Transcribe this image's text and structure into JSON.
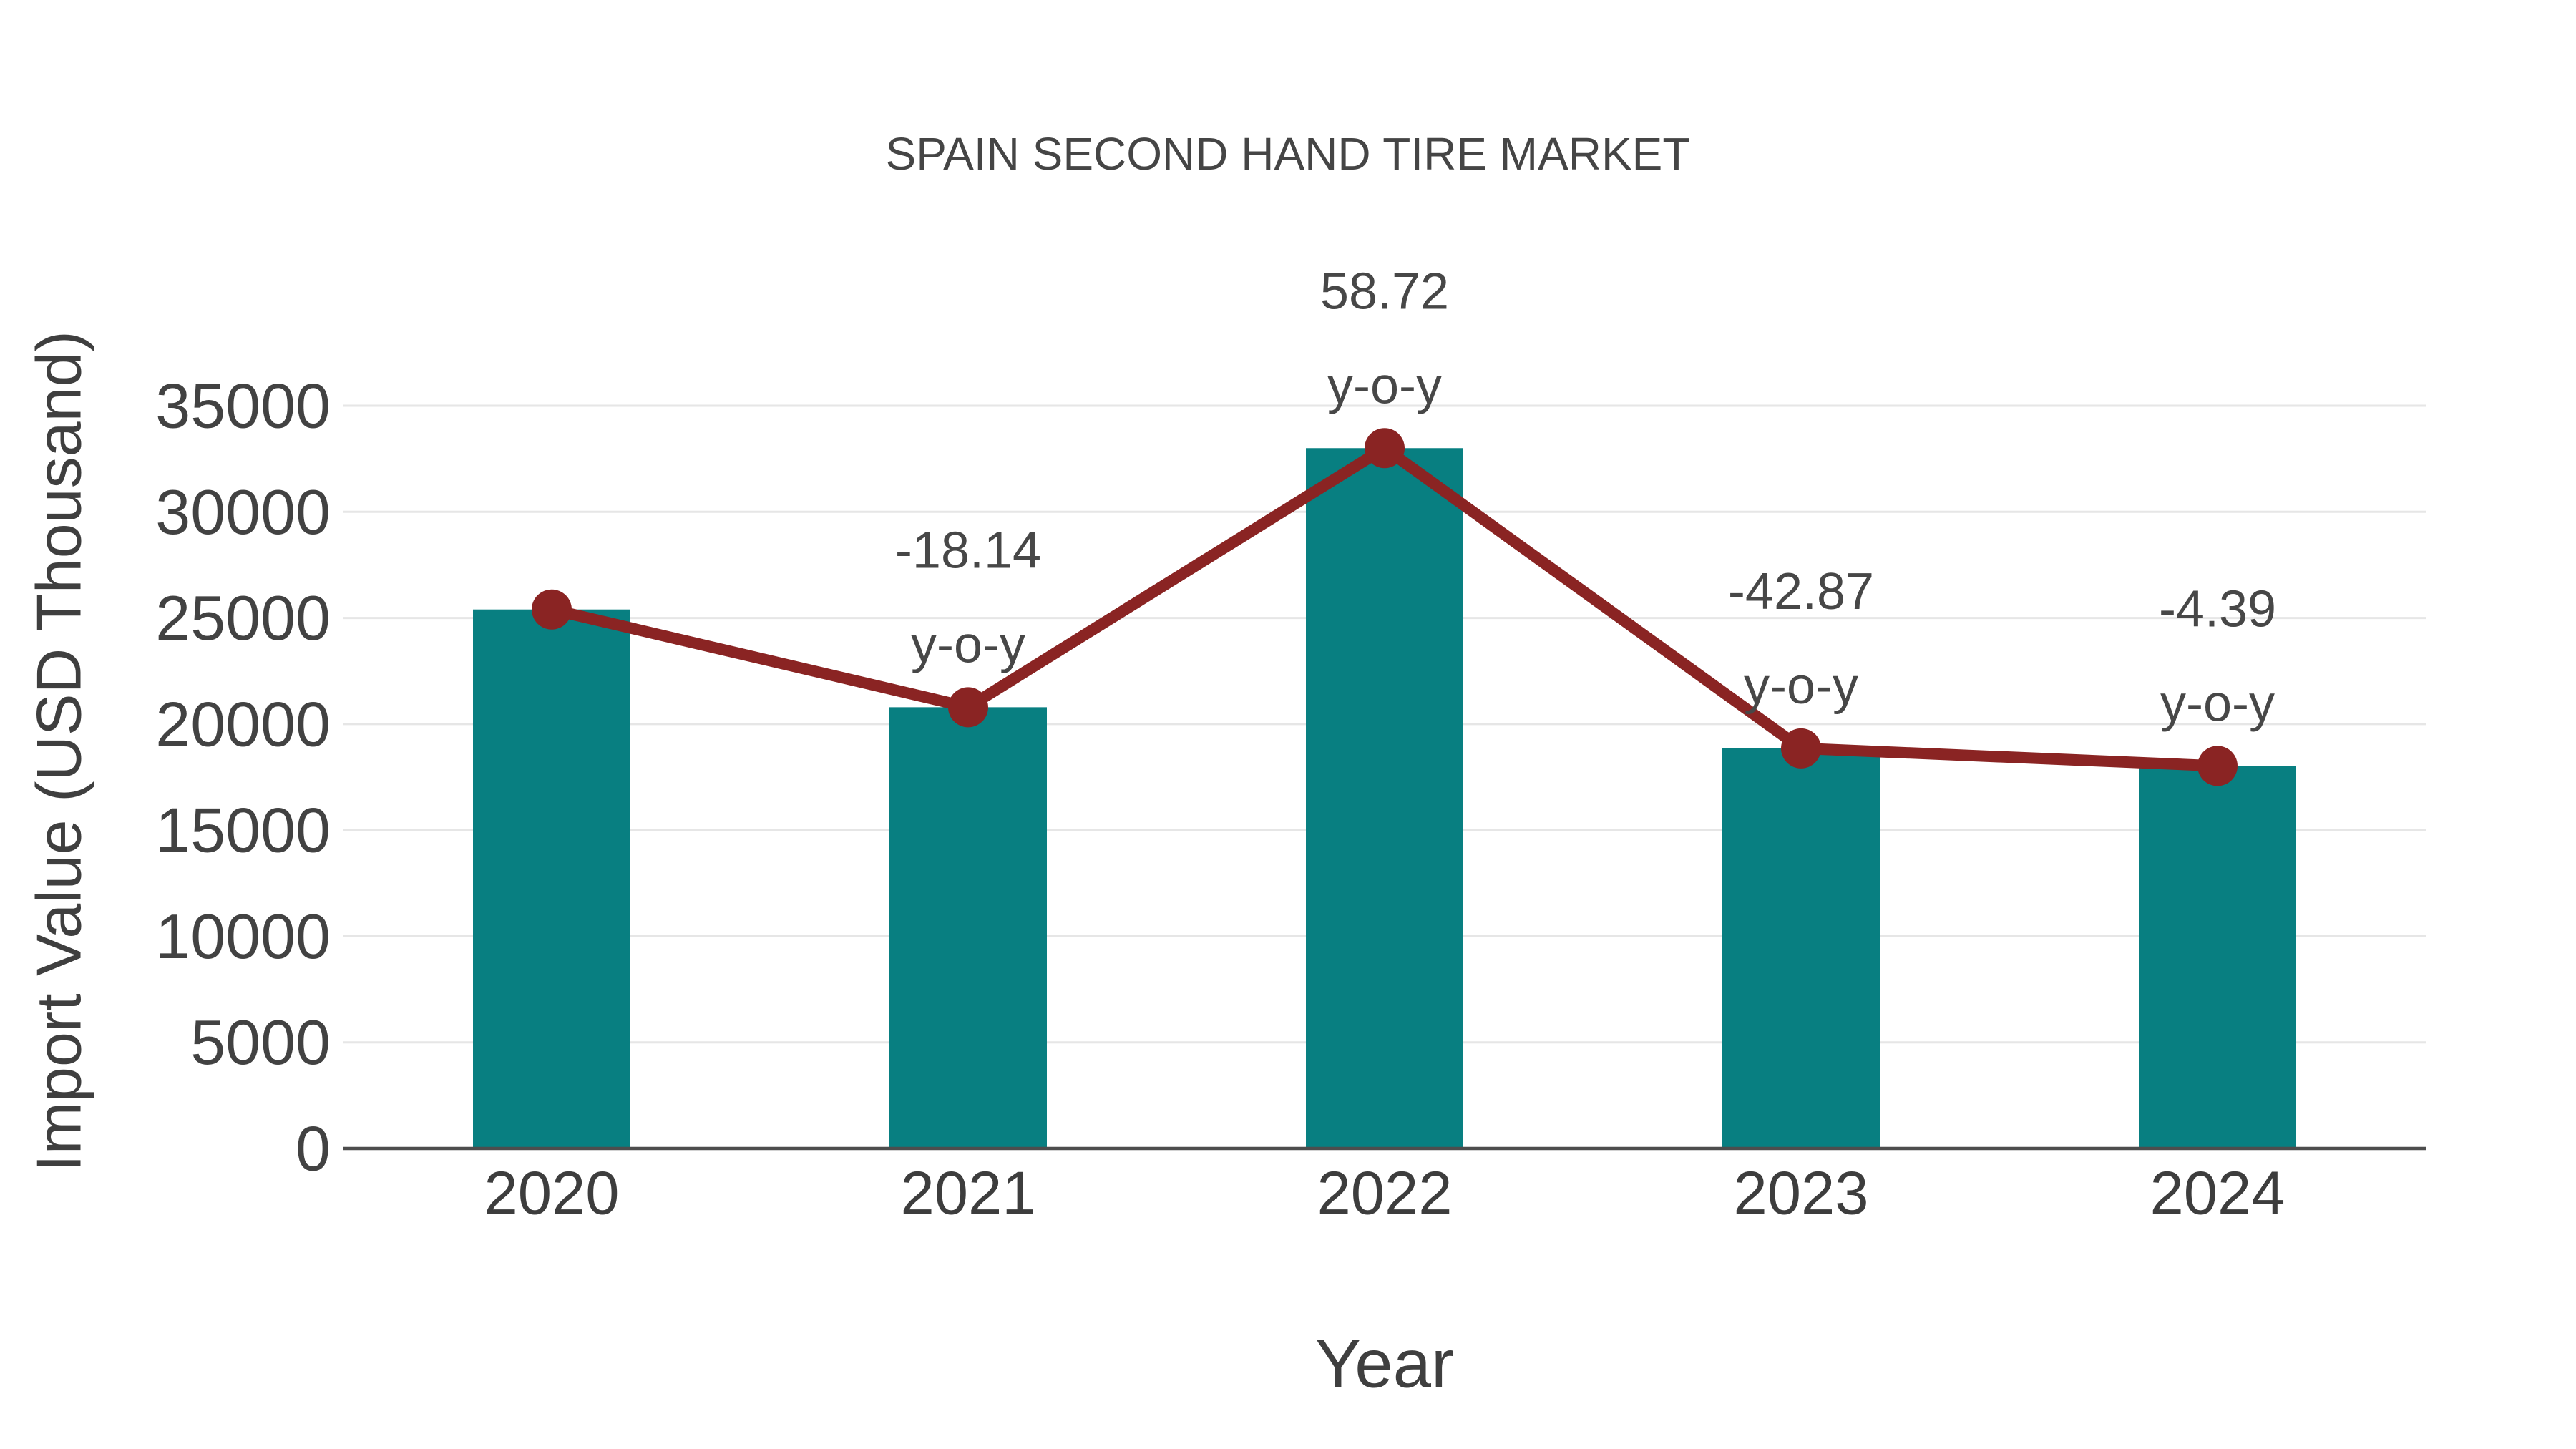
{
  "chart_data": {
    "type": "bar",
    "overlay": "line",
    "title": "SPAIN SECOND HAND TIRE MARKET",
    "xlabel": "Year",
    "ylabel": "Import Value (USD Thousand)",
    "categories": [
      "2020",
      "2021",
      "2022",
      "2023",
      "2024"
    ],
    "series": [
      {
        "name": "import-value-bars",
        "type": "bar",
        "values": [
          25400,
          20792,
          33002,
          18854,
          18026
        ]
      },
      {
        "name": "import-value-line",
        "type": "line",
        "values": [
          25400,
          20792,
          33002,
          18854,
          18026
        ]
      }
    ],
    "annotations": [
      {
        "category": "2021",
        "line1": "-18.14",
        "line2": "y-o-y"
      },
      {
        "category": "2022",
        "line1": "58.72",
        "line2": "y-o-y"
      },
      {
        "category": "2023",
        "line1": "-42.87",
        "line2": "y-o-y"
      },
      {
        "category": "2024",
        "line1": "-4.39",
        "line2": "y-o-y"
      }
    ],
    "ylim": [
      0,
      35000
    ],
    "yticks": [
      0,
      5000,
      10000,
      15000,
      20000,
      25000,
      30000,
      35000
    ],
    "grid": "horizontal",
    "legend": "none",
    "colors": {
      "bar": "#087f81",
      "line": "#8a2423",
      "marker": "#8a2423",
      "gridline": "#e6e6e6",
      "axisline": "#4d4d4d",
      "text": "#424242",
      "background": "#ffffff"
    }
  }
}
